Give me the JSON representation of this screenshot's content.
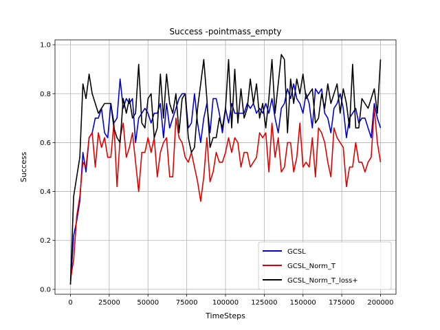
{
  "chart_data": {
    "type": "line",
    "title": "Success -pointmass_empty",
    "xlabel": "TimeSteps",
    "ylabel": "Success",
    "xlim": [
      -10000,
      210000
    ],
    "ylim": [
      -0.02,
      1.02
    ],
    "xticks": [
      0,
      25000,
      50000,
      75000,
      100000,
      125000,
      150000,
      175000,
      200000
    ],
    "yticks": [
      0.0,
      0.2,
      0.4,
      0.6,
      0.8,
      1.0
    ],
    "xtick_labels": [
      "0",
      "25000",
      "50000",
      "75000",
      "100000",
      "125000",
      "150000",
      "175000",
      "200000"
    ],
    "ytick_labels": [
      "0.0",
      "0.2",
      "0.4",
      "0.6",
      "0.8",
      "1.0"
    ],
    "grid": true,
    "legend_position": "bottom-right",
    "series": [
      {
        "name": "GCSL",
        "color": "#0000cc",
        "x": [
          0,
          2000,
          4000,
          6000,
          8000,
          10000,
          12000,
          14000,
          16000,
          18000,
          20000,
          22000,
          24000,
          26000,
          28000,
          30000,
          32000,
          34000,
          36000,
          38000,
          40000,
          42000,
          44000,
          46000,
          48000,
          50000,
          52000,
          54000,
          56000,
          58000,
          60000,
          62000,
          64000,
          66000,
          68000,
          70000,
          72000,
          74000,
          76000,
          78000,
          80000,
          82000,
          84000,
          86000,
          88000,
          90000,
          92000,
          94000,
          96000,
          98000,
          100000,
          102000,
          104000,
          106000,
          108000,
          110000,
          112000,
          114000,
          116000,
          118000,
          120000,
          122000,
          124000,
          126000,
          128000,
          130000,
          132000,
          134000,
          136000,
          138000,
          140000,
          142000,
          144000,
          146000,
          148000,
          150000,
          152000,
          154000,
          156000,
          158000,
          160000,
          162000,
          164000,
          166000,
          168000,
          170000,
          172000,
          174000,
          176000,
          178000,
          180000,
          182000,
          184000,
          186000,
          188000,
          190000,
          192000,
          194000,
          196000,
          198000,
          200000
        ],
        "y": [
          0.02,
          0.22,
          0.28,
          0.36,
          0.56,
          0.48,
          0.62,
          0.64,
          0.7,
          0.7,
          0.74,
          0.64,
          0.62,
          0.76,
          0.68,
          0.7,
          0.86,
          0.74,
          0.78,
          0.76,
          0.78,
          0.6,
          0.7,
          0.72,
          0.74,
          0.72,
          0.68,
          0.72,
          0.72,
          0.76,
          0.62,
          0.76,
          0.66,
          0.7,
          0.74,
          0.78,
          0.8,
          0.8,
          0.66,
          0.68,
          0.8,
          0.68,
          0.6,
          0.7,
          0.76,
          0.64,
          0.78,
          0.78,
          0.72,
          0.64,
          0.74,
          0.68,
          0.76,
          0.72,
          0.72,
          0.72,
          0.72,
          0.76,
          0.74,
          0.76,
          0.72,
          0.74,
          0.72,
          0.76,
          0.72,
          0.78,
          0.7,
          0.64,
          0.74,
          0.76,
          0.82,
          0.78,
          0.84,
          0.78,
          0.76,
          0.72,
          0.8,
          0.76,
          0.66,
          0.82,
          0.8,
          0.82,
          0.72,
          0.7,
          0.64,
          0.74,
          0.76,
          0.8,
          0.74,
          0.62,
          0.7,
          0.72,
          0.74,
          0.68,
          0.7,
          0.7,
          0.66,
          0.62,
          0.76,
          0.7,
          0.66
        ]
      },
      {
        "name": "GCSL_Norm_T",
        "color": "#dd0000",
        "x": [
          0,
          2000,
          4000,
          6000,
          8000,
          10000,
          12000,
          14000,
          16000,
          18000,
          20000,
          22000,
          24000,
          26000,
          28000,
          30000,
          32000,
          34000,
          36000,
          38000,
          40000,
          42000,
          44000,
          46000,
          48000,
          50000,
          52000,
          54000,
          56000,
          58000,
          60000,
          62000,
          64000,
          66000,
          68000,
          70000,
          72000,
          74000,
          76000,
          78000,
          80000,
          82000,
          84000,
          86000,
          88000,
          90000,
          92000,
          94000,
          96000,
          98000,
          100000,
          102000,
          104000,
          106000,
          108000,
          110000,
          112000,
          114000,
          116000,
          118000,
          120000,
          122000,
          124000,
          126000,
          128000,
          130000,
          132000,
          134000,
          136000,
          138000,
          140000,
          142000,
          144000,
          146000,
          148000,
          150000,
          152000,
          154000,
          156000,
          158000,
          160000,
          162000,
          164000,
          166000,
          168000,
          170000,
          172000,
          174000,
          176000,
          178000,
          180000,
          182000,
          184000,
          186000,
          188000,
          190000,
          192000,
          194000,
          196000,
          198000,
          200000
        ],
        "y": [
          0.04,
          0.12,
          0.3,
          0.38,
          0.52,
          0.5,
          0.62,
          0.64,
          0.5,
          0.64,
          0.58,
          0.62,
          0.54,
          0.54,
          0.68,
          0.42,
          0.62,
          0.68,
          0.54,
          0.58,
          0.64,
          0.52,
          0.4,
          0.56,
          0.56,
          0.62,
          0.56,
          0.62,
          0.46,
          0.56,
          0.6,
          0.62,
          0.46,
          0.46,
          0.7,
          0.62,
          0.6,
          0.54,
          0.52,
          0.56,
          0.5,
          0.44,
          0.36,
          0.46,
          0.62,
          0.44,
          0.48,
          0.56,
          0.52,
          0.52,
          0.56,
          0.62,
          0.56,
          0.62,
          0.6,
          0.5,
          0.56,
          0.56,
          0.5,
          0.52,
          0.54,
          0.64,
          0.62,
          0.64,
          0.48,
          0.68,
          0.54,
          0.62,
          0.48,
          0.5,
          0.6,
          0.6,
          0.48,
          0.54,
          0.68,
          0.5,
          0.52,
          0.5,
          0.62,
          0.46,
          0.66,
          0.64,
          0.6,
          0.52,
          0.46,
          0.66,
          0.62,
          0.6,
          0.58,
          0.42,
          0.5,
          0.5,
          0.6,
          0.52,
          0.52,
          0.48,
          0.52,
          0.54,
          0.74,
          0.6,
          0.52
        ]
      },
      {
        "name": "GCSL_Norm_T_loss+",
        "color": "#000000",
        "x": [
          0,
          2000,
          4000,
          6000,
          8000,
          10000,
          12000,
          14000,
          16000,
          18000,
          20000,
          22000,
          24000,
          26000,
          28000,
          30000,
          32000,
          34000,
          36000,
          38000,
          40000,
          42000,
          44000,
          46000,
          48000,
          50000,
          52000,
          54000,
          56000,
          58000,
          60000,
          62000,
          64000,
          66000,
          68000,
          70000,
          72000,
          74000,
          76000,
          78000,
          80000,
          82000,
          84000,
          86000,
          88000,
          90000,
          92000,
          94000,
          96000,
          98000,
          100000,
          102000,
          104000,
          106000,
          108000,
          110000,
          112000,
          114000,
          116000,
          118000,
          120000,
          122000,
          124000,
          126000,
          128000,
          130000,
          132000,
          134000,
          136000,
          138000,
          140000,
          142000,
          144000,
          146000,
          148000,
          150000,
          152000,
          154000,
          156000,
          158000,
          160000,
          162000,
          164000,
          166000,
          168000,
          170000,
          172000,
          174000,
          176000,
          178000,
          180000,
          182000,
          184000,
          186000,
          188000,
          190000,
          192000,
          194000,
          196000,
          198000,
          200000
        ],
        "y": [
          0.02,
          0.38,
          0.46,
          0.54,
          0.84,
          0.78,
          0.88,
          0.8,
          0.76,
          0.72,
          0.74,
          0.76,
          0.76,
          0.76,
          0.66,
          0.62,
          0.6,
          0.78,
          0.72,
          0.78,
          0.7,
          0.72,
          0.92,
          0.68,
          0.66,
          0.78,
          0.8,
          0.62,
          0.66,
          0.88,
          0.7,
          0.88,
          0.76,
          0.72,
          0.8,
          0.64,
          0.78,
          0.8,
          0.62,
          0.56,
          0.58,
          0.74,
          0.84,
          0.94,
          0.78,
          0.58,
          0.62,
          0.62,
          0.7,
          0.66,
          0.74,
          0.94,
          0.66,
          0.9,
          0.68,
          0.82,
          0.7,
          0.74,
          0.86,
          0.76,
          0.84,
          0.7,
          0.76,
          0.66,
          0.78,
          0.94,
          0.72,
          0.84,
          0.96,
          0.94,
          0.64,
          0.86,
          0.76,
          0.86,
          0.8,
          0.88,
          0.78,
          0.8,
          0.82,
          0.68,
          0.7,
          0.8,
          0.74,
          0.84,
          0.76,
          0.8,
          0.84,
          0.72,
          0.82,
          0.76,
          0.66,
          0.92,
          0.66,
          0.66,
          0.78,
          0.76,
          0.74,
          0.78,
          0.82,
          0.72,
          0.94
        ]
      }
    ]
  }
}
